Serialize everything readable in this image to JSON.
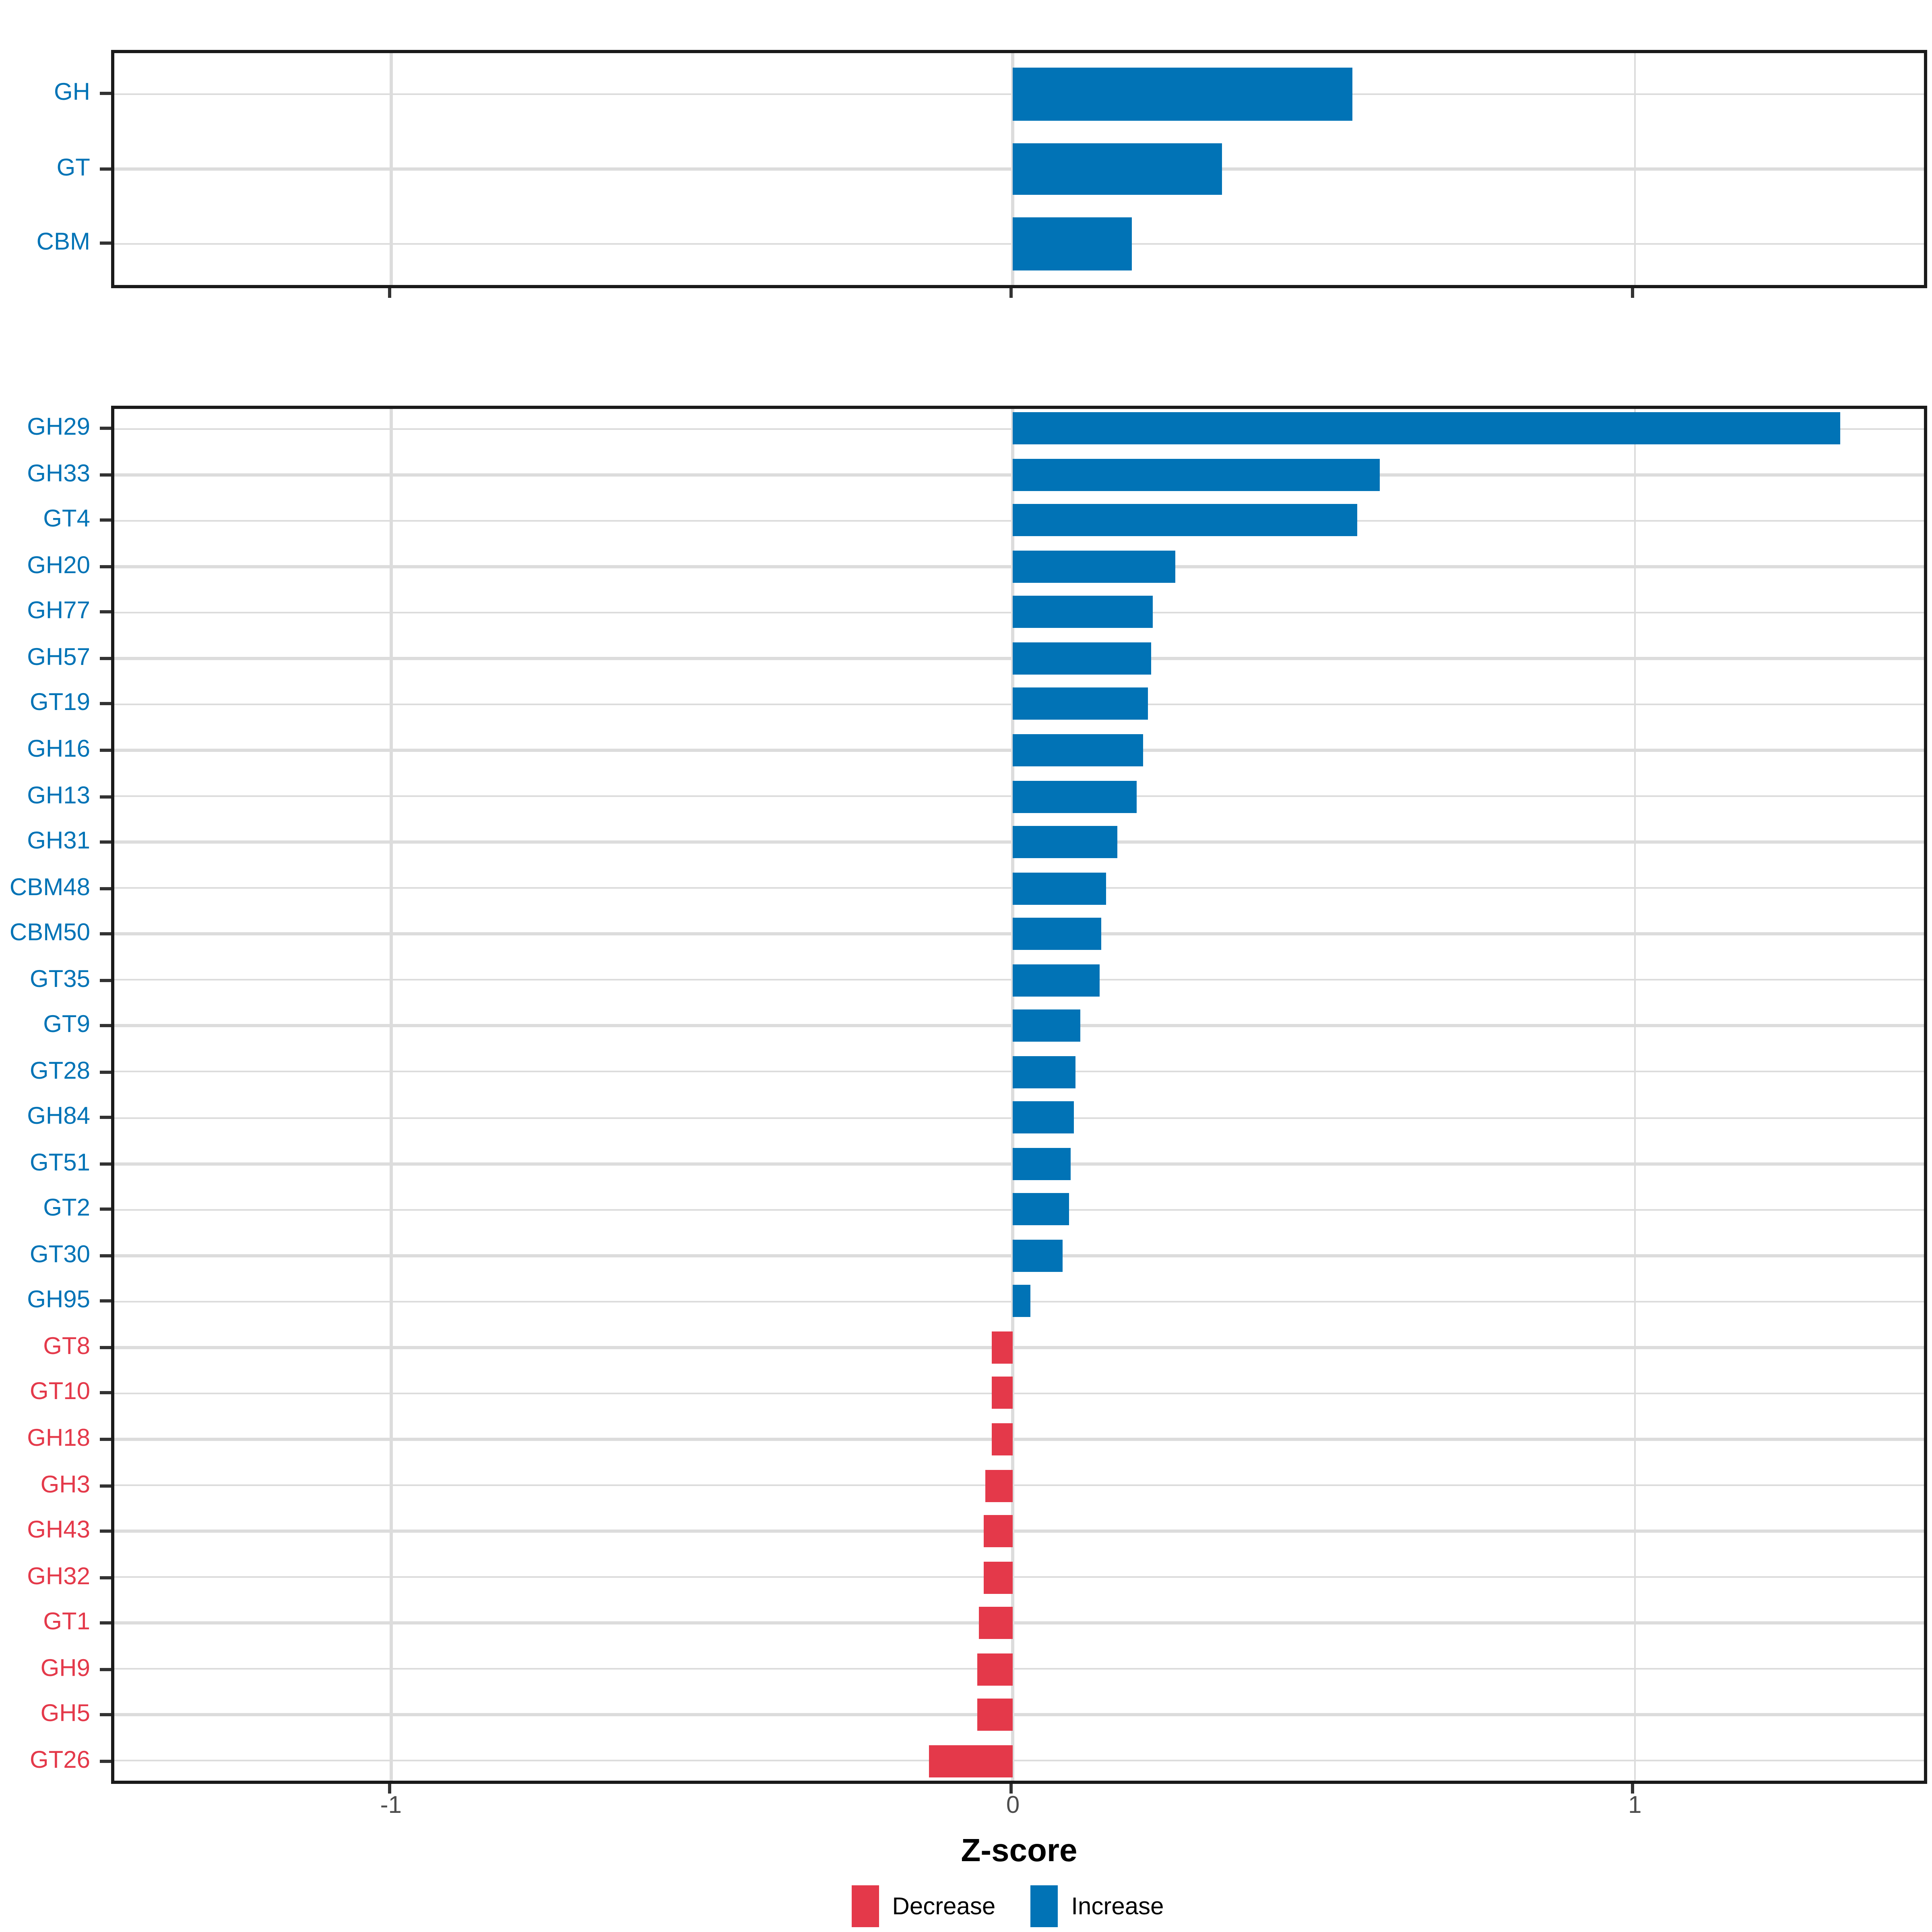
{
  "chart_data": {
    "type": "bar",
    "orientation": "horizontal",
    "xlabel": "Z-score",
    "x_ticks": [
      -1,
      0,
      1
    ],
    "x_tick_labels": [
      "-1",
      "0",
      "1"
    ],
    "xlim": [
      -1.45,
      1.47
    ],
    "grid": true,
    "legend_position": "bottom",
    "colors": {
      "increase": "#0173B6",
      "decrease": "#E4394A",
      "gridline": "#dcdcdc",
      "panel_border": "#1a1a1a",
      "tick_label": "#4d4d4d"
    },
    "legend": [
      {
        "label": "Decrease",
        "color": "#E4394A"
      },
      {
        "label": "Increase",
        "color": "#0173B6"
      }
    ],
    "panels": [
      {
        "name": "cazyme-class-summary",
        "categories": [
          "GH",
          "GT",
          "CBM"
        ],
        "values": [
          0.545,
          0.335,
          0.19
        ],
        "directions": [
          "increase",
          "increase",
          "increase"
        ]
      },
      {
        "name": "cazyme-family-detail",
        "categories": [
          "GH29",
          "GH33",
          "GT4",
          "GH20",
          "GH77",
          "GH57",
          "GT19",
          "GH16",
          "GH13",
          "GH31",
          "CBM48",
          "CBM50",
          "GT35",
          "GT9",
          "GT28",
          "GH84",
          "GT51",
          "GT2",
          "GT30",
          "GH95",
          "GT8",
          "GT10",
          "GH18",
          "GH3",
          "GH43",
          "GH32",
          "GT1",
          "GH9",
          "GH5",
          "GT26"
        ],
        "values": [
          1.33,
          0.59,
          0.553,
          0.262,
          0.224,
          0.222,
          0.216,
          0.21,
          0.2,
          0.169,
          0.151,
          0.141,
          0.14,
          0.109,
          0.1,
          0.097,
          0.093,
          0.091,
          0.08,
          0.029,
          -0.033,
          -0.033,
          -0.034,
          -0.044,
          -0.047,
          -0.047,
          -0.056,
          -0.057,
          -0.058,
          -0.135
        ],
        "directions": [
          "increase",
          "increase",
          "increase",
          "increase",
          "increase",
          "increase",
          "increase",
          "increase",
          "increase",
          "increase",
          "increase",
          "increase",
          "increase",
          "increase",
          "increase",
          "increase",
          "increase",
          "increase",
          "increase",
          "increase",
          "decrease",
          "decrease",
          "decrease",
          "decrease",
          "decrease",
          "decrease",
          "decrease",
          "decrease",
          "decrease",
          "decrease"
        ]
      }
    ]
  }
}
